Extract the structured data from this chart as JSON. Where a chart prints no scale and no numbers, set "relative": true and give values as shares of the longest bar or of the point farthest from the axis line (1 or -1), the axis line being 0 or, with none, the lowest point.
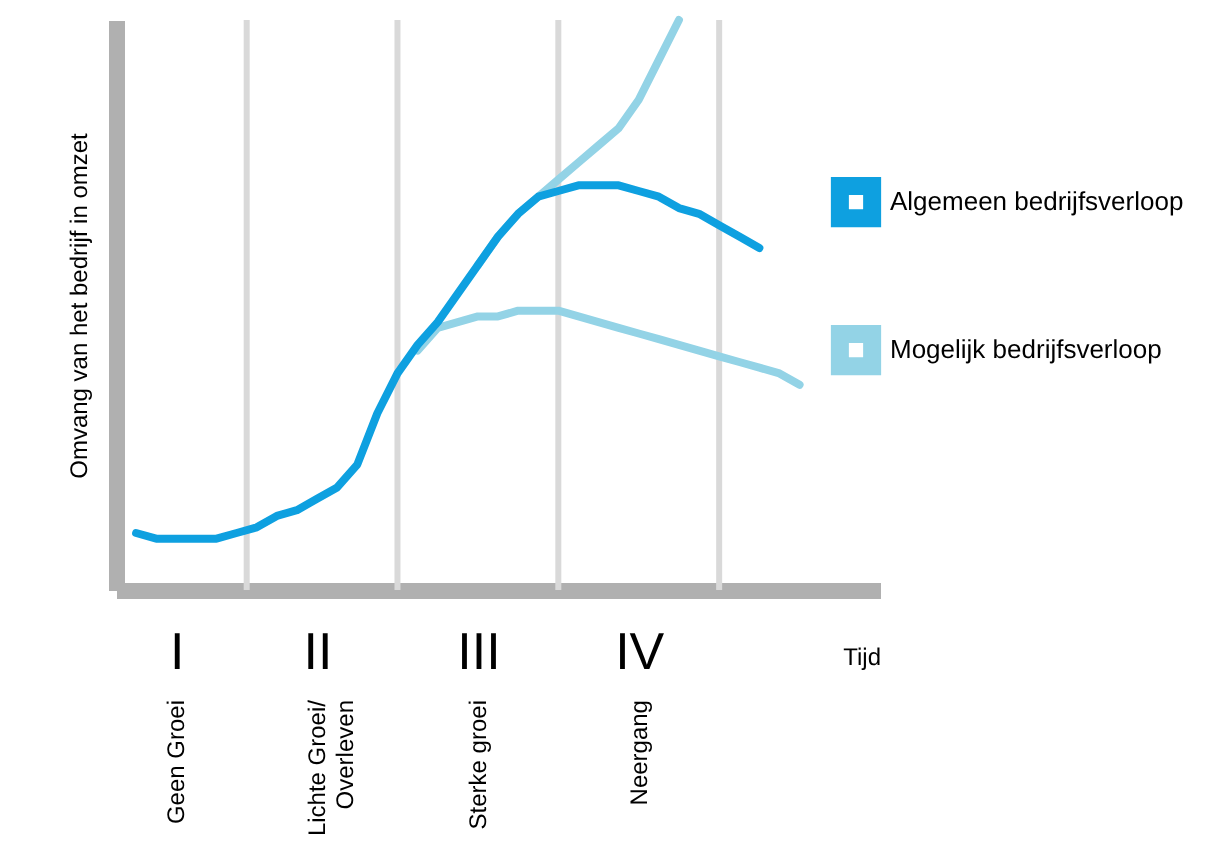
{
  "chart_data": {
    "type": "line",
    "relative": true,
    "tick_labels": "x",
    "grid": "x",
    "legend": "right",
    "marker": "none",
    "line_style": "solid",
    "xlabel": "Tijd",
    "ylabel": "Omvang van het bedrijf in omzet",
    "categories": [
      null,
      null,
      null,
      "I",
      null,
      null,
      null,
      null,
      null,
      null,
      "II",
      null,
      null,
      null,
      null,
      null,
      null,
      null,
      "III",
      null,
      null,
      null,
      null,
      null,
      null,
      null,
      "IV",
      null,
      null,
      null,
      null,
      null,
      null,
      null,
      null,
      null,
      null,
      null,
      null
    ],
    "annotations": [
      "Geen Groei",
      "Lichte Groei/\nOverleven",
      "Sterke groei",
      "Neergang"
    ],
    "series": [
      {
        "name": "Algemeen bedrijfsverloop",
        "color": "#0ea0e0",
        "values": [
          null,
          0.1,
          0.09,
          0.09,
          0.09,
          0.09,
          0.1,
          0.11,
          0.13,
          0.14,
          0.16,
          0.18,
          0.22,
          0.31,
          0.38,
          0.43,
          0.47,
          0.52,
          0.57,
          0.62,
          0.66,
          0.69,
          0.7,
          0.71,
          0.71,
          0.71,
          0.7,
          0.69,
          0.67,
          0.66,
          0.64,
          0.62,
          0.6,
          null,
          null,
          null,
          null,
          null,
          null
        ]
      },
      {
        "name": "Mogelijk bedrijfsverloop",
        "color": "#93d3e6",
        "values": [
          null,
          null,
          null,
          null,
          null,
          null,
          null,
          null,
          null,
          null,
          null,
          null,
          null,
          null,
          null,
          null,
          null,
          null,
          0.57,
          0.62,
          0.66,
          0.69,
          0.72,
          0.75,
          0.78,
          0.81,
          0.86,
          0.93,
          1.0,
          null,
          null,
          null,
          null,
          null,
          null,
          null,
          null,
          null,
          null
        ]
      },
      {
        "color": "#93d3e6",
        "values": [
          null,
          null,
          null,
          null,
          null,
          null,
          null,
          null,
          null,
          null,
          null,
          null,
          null,
          null,
          null,
          0.42,
          0.46,
          0.47,
          0.48,
          0.48,
          0.49,
          0.49,
          0.49,
          0.48,
          0.47,
          0.46,
          0.45,
          0.44,
          0.43,
          0.42,
          0.41,
          0.4,
          0.39,
          0.38,
          0.36,
          null,
          null,
          null,
          null
        ]
      }
    ]
  }
}
